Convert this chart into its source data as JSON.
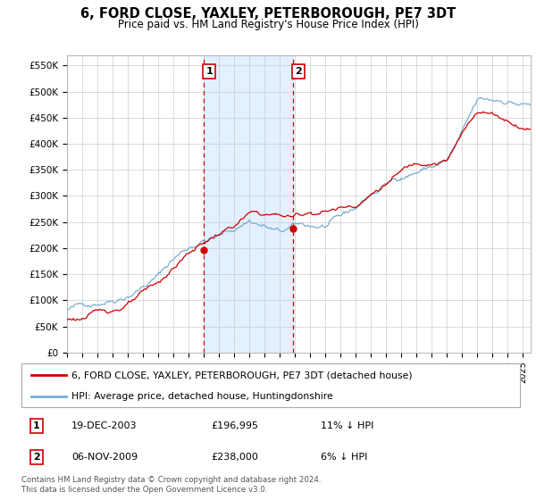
{
  "title": "6, FORD CLOSE, YAXLEY, PETERBOROUGH, PE7 3DT",
  "subtitle": "Price paid vs. HM Land Registry's House Price Index (HPI)",
  "ylim": [
    0,
    570000
  ],
  "yticks": [
    0,
    50000,
    100000,
    150000,
    200000,
    250000,
    300000,
    350000,
    400000,
    450000,
    500000,
    550000
  ],
  "ytick_labels": [
    "£0",
    "£50K",
    "£100K",
    "£150K",
    "£200K",
    "£250K",
    "£300K",
    "£350K",
    "£400K",
    "£450K",
    "£500K",
    "£550K"
  ],
  "xlim_left": 1995,
  "xlim_right": 2025.5,
  "background_color": "#ffffff",
  "plot_bg_color": "#ffffff",
  "grid_color": "#cccccc",
  "transaction1": {
    "date_num": 2003.97,
    "price": 196995,
    "label": "1",
    "date_str": "19-DEC-2003",
    "price_str": "£196,995",
    "hpi_diff": "11% ↓ HPI"
  },
  "transaction2": {
    "date_num": 2009.85,
    "price": 238000,
    "label": "2",
    "date_str": "06-NOV-2009",
    "price_str": "£238,000",
    "hpi_diff": "6% ↓ HPI"
  },
  "legend_line1_label": "6, FORD CLOSE, YAXLEY, PETERBOROUGH, PE7 3DT (detached house)",
  "legend_line2_label": "HPI: Average price, detached house, Huntingdonshire",
  "footnote": "Contains HM Land Registry data © Crown copyright and database right 2024.\nThis data is licensed under the Open Government Licence v3.0.",
  "red_color": "#cc0000",
  "blue_color": "#7aadd4",
  "highlight_color": "#ddeeff",
  "box_edge_color": "#cc0000",
  "hpi_noise_seed": 42,
  "red_noise_seed": 123
}
